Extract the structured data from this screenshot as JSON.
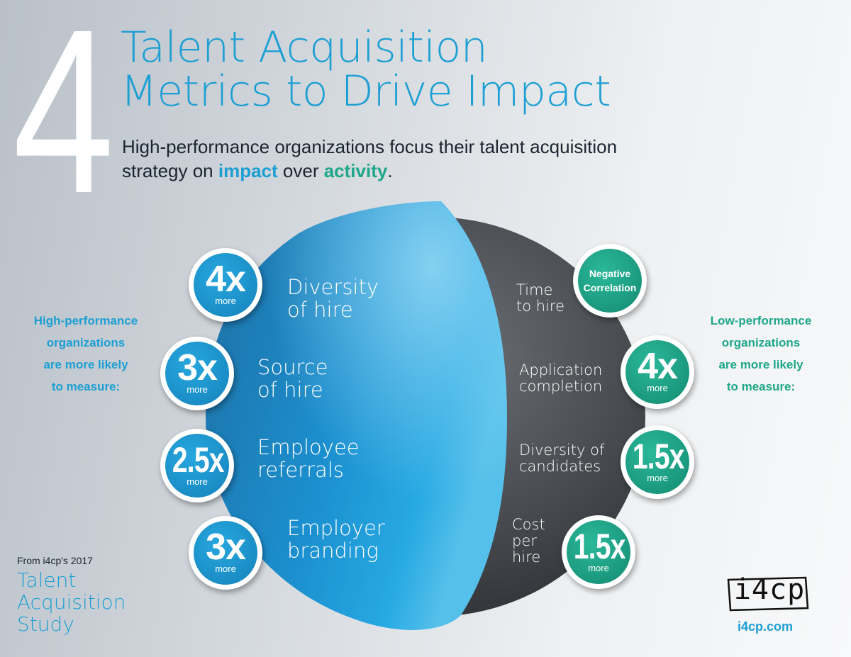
{
  "header": {
    "number": "4",
    "title_line1": "Talent Acquisition",
    "title_line2": "Metrics to Drive Impact",
    "subtitle_line1": "High-performance organizations focus their talent acquisition",
    "subtitle_prefix": "strategy on ",
    "subtitle_impact": "impact",
    "subtitle_middle": " over ",
    "subtitle_activity": "activity",
    "subtitle_end": "."
  },
  "left_label": {
    "line1": "High-performance",
    "line2": "organizations",
    "line3": "are more likely",
    "line4": "to measure:"
  },
  "right_label": {
    "line1": "Low-performance",
    "line2": "organizations",
    "line3": "are more likely",
    "line4": "to measure:"
  },
  "high_metrics": [
    {
      "value": "4x",
      "unit": "more",
      "line1": "Diversity",
      "line2": "of hire"
    },
    {
      "value": "3x",
      "unit": "more",
      "line1": "Source",
      "line2": "of hire"
    },
    {
      "value": "2.5x",
      "unit": "more",
      "line1": "Employee",
      "line2": "referrals"
    },
    {
      "value": "3x",
      "unit": "more",
      "line1": "Employer",
      "line2": "branding"
    }
  ],
  "low_metrics": [
    {
      "value_line1": "Negative",
      "value_line2": "Correlation",
      "line1": "Time",
      "line2": "to hire"
    },
    {
      "value": "4x",
      "unit": "more",
      "line1": "Application",
      "line2": "completion"
    },
    {
      "value": "1.5x",
      "unit": "more",
      "line1": "Diversity of",
      "line2": "candidates"
    },
    {
      "value": "1.5x",
      "unit": "more",
      "line1": "Cost",
      "line2": "per",
      "line3": "hire"
    }
  ],
  "source": {
    "from": "From i4cp's 2017",
    "line1": "Talent",
    "line2": "Acquisition",
    "line3": "Study"
  },
  "logo": {
    "text": "i4cp",
    "url": "i4cp.com"
  },
  "colors": {
    "blue": "#1d9fd3",
    "teal": "#1fa78a",
    "dark_sphere": "#4a4d52"
  }
}
